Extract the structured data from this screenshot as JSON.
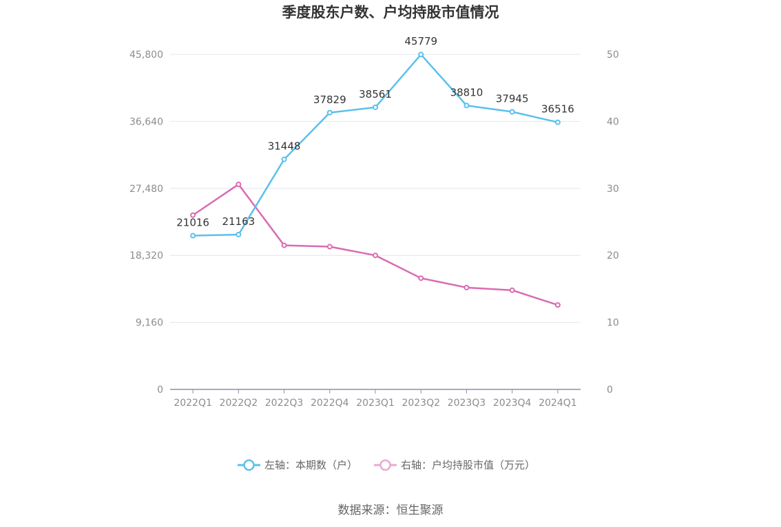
{
  "chart_data": {
    "type": "line",
    "title": "季度股东户数、户均持股市值情况",
    "categories": [
      "2022Q1",
      "2022Q2",
      "2022Q3",
      "2022Q4",
      "2023Q1",
      "2023Q2",
      "2023Q3",
      "2023Q4",
      "2024Q1"
    ],
    "left_axis": {
      "min": 0,
      "max": 45800,
      "ticks": [
        "0",
        "9,160",
        "18,320",
        "27,480",
        "36,640",
        "45,800"
      ]
    },
    "right_axis": {
      "min": 0,
      "max": 50,
      "ticks": [
        "0",
        "10",
        "20",
        "30",
        "40",
        "50"
      ]
    },
    "grid": true,
    "legend_position": "bottom",
    "series": [
      {
        "name": "左轴：本期数（户）",
        "axis": "left",
        "color": "#5bc0eb",
        "values": [
          21016,
          21163,
          31448,
          37829,
          38561,
          45779,
          38810,
          37945,
          36516
        ],
        "labels": [
          "21016",
          "21163",
          "31448",
          "37829",
          "38561",
          "45779",
          "38810",
          "37945",
          "36516"
        ]
      },
      {
        "name": "右轴：户均持股市值（万元）",
        "axis": "right",
        "color": "#d96bb2",
        "values": [
          26.0,
          30.6,
          21.5,
          21.3,
          20.0,
          16.6,
          15.2,
          14.8,
          12.6
        ]
      }
    ],
    "source": "数据来源：恒生聚源"
  }
}
